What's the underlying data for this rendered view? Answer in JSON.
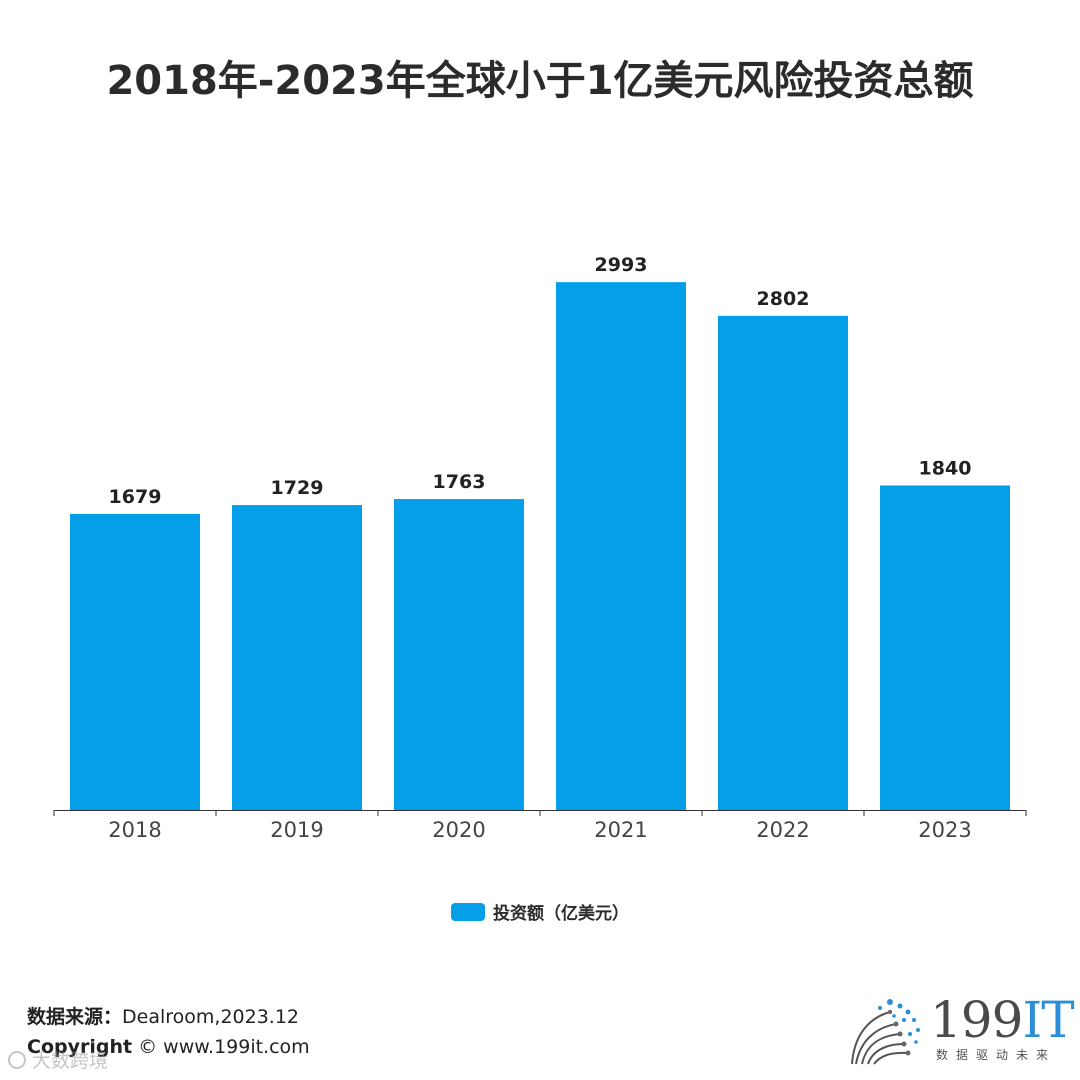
{
  "title": "2018年-2023年全球小于1亿美元风险投资总额",
  "colors": {
    "bar": "#049FE8",
    "axis": "#333333",
    "tick_label": "#444444",
    "value_label": "#222222"
  },
  "chart_data": {
    "type": "bar",
    "categories": [
      "2018",
      "2019",
      "2020",
      "2021",
      "2022",
      "2023"
    ],
    "series": [
      {
        "name": "投资额（亿美元）",
        "values": [
          1679,
          1729,
          1763,
          2993,
          2802,
          1840
        ]
      }
    ],
    "title": "2018年-2023年全球小于1亿美元风险投资总额",
    "xlabel": "",
    "ylabel": "",
    "ylim": [
      0,
      3300
    ],
    "grid": false,
    "legend": "bottom"
  },
  "legend": {
    "label": "投资额（亿美元）"
  },
  "footer": {
    "source_label": "数据来源：",
    "source_value": "Dealroom,2023.12",
    "copyright_label": "Copyright",
    "copyright_value": "© www.199it.com"
  },
  "watermark": "大数跨境",
  "logo": {
    "main": "199",
    "accent": "IT",
    "tagline": "数据驱动未来",
    "icon": "dot-fan-logo-icon"
  }
}
